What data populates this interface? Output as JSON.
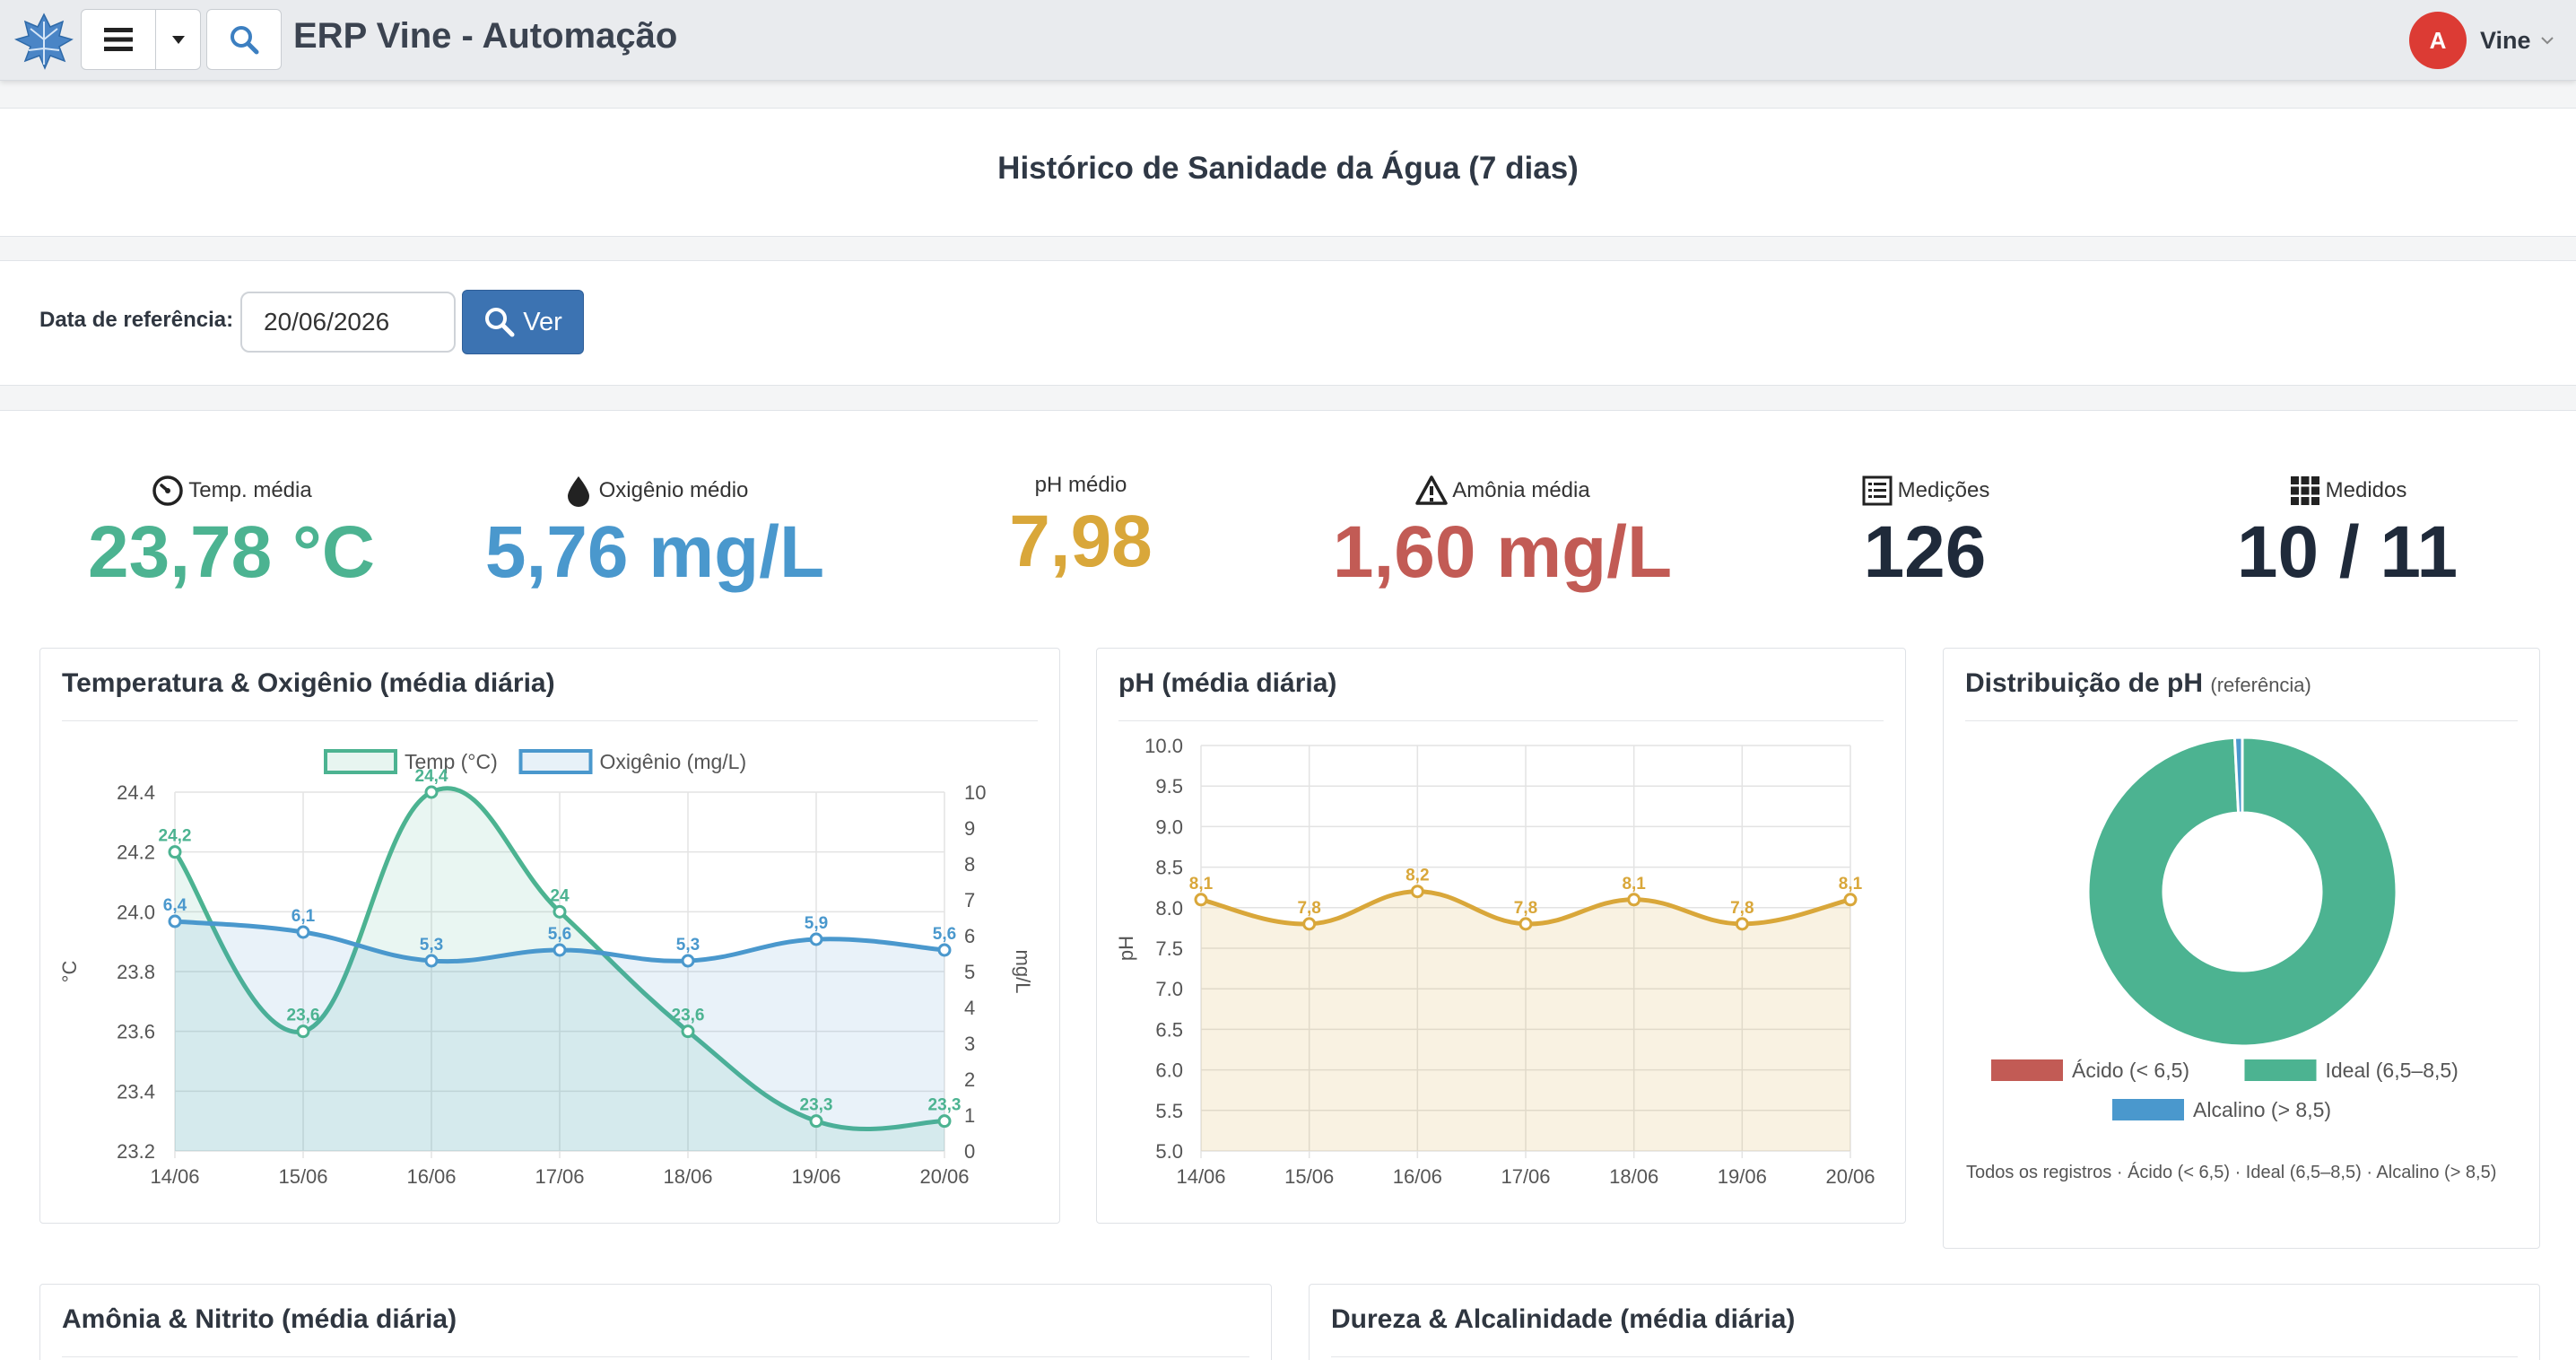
{
  "header": {
    "app_title": "ERP Vine - Automação",
    "avatar_initial": "A",
    "user_name": "Vine"
  },
  "page": {
    "title": "Histórico de Sanidade da Água (7 dias)"
  },
  "filter": {
    "label": "Data de referência:",
    "date_value": "20/06/2026",
    "button_label": "Ver"
  },
  "kpis": [
    {
      "label": "Temp. média",
      "value": "23,78 °C",
      "color": "#4cb391",
      "icon": "gauge-icon"
    },
    {
      "label": "Oxigênio médio",
      "value": "5,76 mg/L",
      "color": "#4a98cd",
      "icon": "drop-icon"
    },
    {
      "label": "pH médio",
      "value": "7,98",
      "color": "#d9a73a",
      "icon": ""
    },
    {
      "label": "Amônia média",
      "value": "1,60 mg/L",
      "color": "#c25b55",
      "icon": "warning-icon"
    },
    {
      "label": "Medições",
      "value": "126",
      "color": "#1f2a3a",
      "icon": "list-icon"
    },
    {
      "label": "Medidos",
      "value": "10 / 11",
      "color": "#1f2a3a",
      "icon": "grid-icon"
    }
  ],
  "cards": {
    "temp_oxy_title": "Temperatura & Oxigênio (média diária)",
    "ph_title": "pH (média diária)",
    "dist_title": "Distribuição de pH",
    "dist_subtitle": "(referência)",
    "ammonia_title": "Amônia & Nitrito (média diária)",
    "hardness_title": "Dureza & Alcalinidade (média diária)",
    "dist_footnote": "Todos os registros · Ácido (< 6,5) · Ideal (6,5–8,5) · Alcalino (> 8,5)"
  },
  "chart_data": [
    {
      "type": "line",
      "title": "Temperatura & Oxigênio (média diária)",
      "categories": [
        "14/06",
        "15/06",
        "16/06",
        "17/06",
        "18/06",
        "19/06",
        "20/06"
      ],
      "series": [
        {
          "name": "Temp (°C)",
          "axis": "left",
          "values": [
            24.2,
            23.6,
            24.4,
            24.0,
            23.6,
            23.3,
            23.3
          ],
          "labels": [
            "24,2",
            "23,6",
            "24,4",
            "24",
            "23,6",
            "23,3",
            "23,3"
          ],
          "color": "#4cb391"
        },
        {
          "name": "Oxigênio (mg/L)",
          "axis": "right",
          "values": [
            6.4,
            6.1,
            5.3,
            5.6,
            5.3,
            5.9,
            5.6
          ],
          "labels": [
            "6,4",
            "6,1",
            "5,3",
            "5,6",
            "5,3",
            "5,9",
            "5,6"
          ],
          "color": "#4a98cd"
        }
      ],
      "ylabel": "°C",
      "y2label": "mg/L",
      "ylim": [
        23.2,
        24.4
      ],
      "yticks": [
        "24.4",
        "24.2",
        "24.0",
        "23.8",
        "23.6",
        "23.4",
        "23.2"
      ],
      "y2lim": [
        0,
        10
      ],
      "y2ticks": [
        "10",
        "9",
        "8",
        "7",
        "6",
        "5",
        "4",
        "3",
        "2",
        "1",
        "0"
      ],
      "legend": "top",
      "grid": true
    },
    {
      "type": "area",
      "title": "pH (média diária)",
      "categories": [
        "14/06",
        "15/06",
        "16/06",
        "17/06",
        "18/06",
        "19/06",
        "20/06"
      ],
      "series": [
        {
          "name": "pH",
          "values": [
            8.1,
            7.8,
            8.2,
            7.8,
            8.1,
            7.8,
            8.1
          ],
          "labels": [
            "8,1",
            "7,8",
            "8,2",
            "7,8",
            "8,1",
            "7,8",
            "8,1"
          ],
          "color": "#d9a73a"
        }
      ],
      "ylabel": "pH",
      "ylim": [
        5.0,
        10.0
      ],
      "yticks": [
        "10.0",
        "9.5",
        "9.0",
        "8.5",
        "8.0",
        "7.5",
        "7.0",
        "6.5",
        "6.0",
        "5.5",
        "5.0"
      ],
      "grid": true
    },
    {
      "type": "pie",
      "title": "Distribuição de pH",
      "subtitle": "(referência)",
      "slices": [
        {
          "name": "Ácido (< 6,5)",
          "value": 0,
          "color": "#c25b55"
        },
        {
          "name": "Ideal (6,5–8,5)",
          "value": 125,
          "color": "#4cb391"
        },
        {
          "name": "Alcalino (> 8,5)",
          "value": 1,
          "color": "#4a98cd"
        }
      ],
      "legend": "bottom"
    }
  ]
}
